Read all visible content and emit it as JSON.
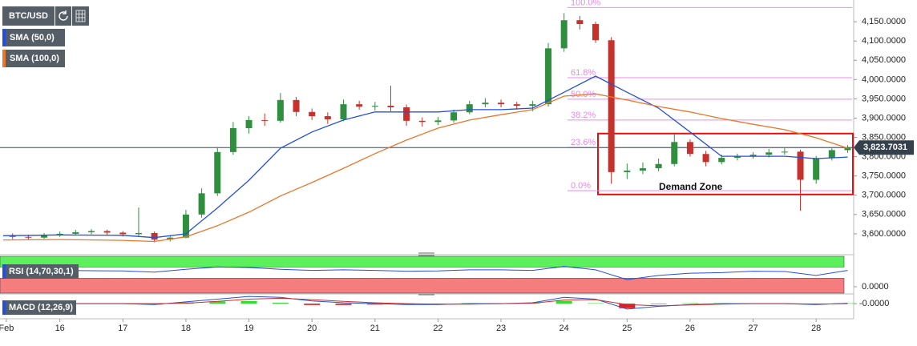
{
  "chart_data": [
    {
      "type": "candlestick",
      "symbol": "BTC/USD",
      "x": [
        15.25,
        15.5,
        15.75,
        16,
        16.25,
        16.5,
        16.75,
        17,
        17.25,
        17.5,
        17.75,
        18,
        18.25,
        18.5,
        18.75,
        19,
        19.25,
        19.5,
        19.75,
        20,
        20.25,
        20.5,
        20.75,
        21,
        21.25,
        21.5,
        21.75,
        22,
        22.25,
        22.5,
        22.75,
        23,
        23.25,
        23.5,
        23.75,
        24,
        24.25,
        24.5,
        24.75,
        25,
        25.25,
        25.5,
        25.75,
        26,
        26.25,
        26.5,
        26.75,
        27,
        27.25,
        27.5,
        27.75,
        28,
        28.25,
        28.5
      ],
      "open": [
        3595,
        3592,
        3590,
        3597,
        3600,
        3604,
        3607,
        3603,
        3599,
        3602,
        3585,
        3590,
        3650,
        3705,
        3812,
        3874,
        3895,
        3893,
        3947,
        3916,
        3905,
        3897,
        3936,
        3930,
        3932,
        3928,
        3893,
        3890,
        3894,
        3915,
        3936,
        3940,
        3936,
        3932,
        3936,
        4081,
        4154,
        4144,
        4102,
        3760,
        3764,
        3770,
        3781,
        3838,
        3807,
        3786,
        3797,
        3801,
        3805,
        3811,
        3813,
        3740,
        3796,
        3817
      ],
      "high": [
        3601,
        3598,
        3602,
        3606,
        3610,
        3612,
        3611,
        3607,
        3668,
        3606,
        3596,
        3662,
        3718,
        3825,
        3890,
        3905,
        3912,
        3965,
        3955,
        3925,
        3915,
        3948,
        3945,
        3942,
        3984,
        3935,
        3902,
        3903,
        3922,
        3945,
        3952,
        3948,
        3942,
        3945,
        4095,
        4172,
        4165,
        4150,
        4110,
        3782,
        3785,
        3795,
        3858,
        3845,
        3815,
        3805,
        3808,
        3812,
        3820,
        3822,
        3818,
        3802,
        3822,
        3830
      ],
      "low": [
        3586,
        3584,
        3587,
        3592,
        3596,
        3599,
        3597,
        3593,
        3594,
        3578,
        3580,
        3588,
        3642,
        3698,
        3805,
        3860,
        3880,
        3888,
        3905,
        3895,
        3885,
        3892,
        3922,
        3920,
        3918,
        3880,
        3878,
        3882,
        3888,
        3910,
        3928,
        3928,
        3922,
        3918,
        3930,
        4072,
        4130,
        4095,
        3730,
        3742,
        3755,
        3762,
        3775,
        3800,
        3775,
        3780,
        3790,
        3795,
        3798,
        3805,
        3660,
        3730,
        3790,
        3810
      ],
      "close": [
        3592,
        3590,
        3597,
        3600,
        3604,
        3607,
        3603,
        3599,
        3602,
        3585,
        3590,
        3650,
        3705,
        3812,
        3874,
        3895,
        3893,
        3947,
        3916,
        3905,
        3897,
        3936,
        3930,
        3932,
        3928,
        3893,
        3890,
        3894,
        3915,
        3936,
        3940,
        3936,
        3932,
        3936,
        4081,
        4154,
        4144,
        4102,
        3760,
        3764,
        3770,
        3781,
        3838,
        3807,
        3786,
        3797,
        3801,
        3805,
        3811,
        3813,
        3740,
        3796,
        3817,
        3824
      ],
      "up_color": "#2f8f3e",
      "down_color": "#c8312b",
      "series": [
        {
          "name": "SMA (50,0)",
          "color": "#2450d8",
          "x": [
            15.1,
            16,
            17,
            17.5,
            18,
            18.5,
            19,
            19.5,
            20,
            20.5,
            21,
            21.5,
            22,
            22.5,
            23,
            23.5,
            24,
            24.5,
            25,
            25.5,
            26,
            26.5,
            27,
            27.5,
            28,
            28.5
          ],
          "values": [
            3595,
            3597,
            3596,
            3590,
            3600,
            3667,
            3739,
            3822,
            3864,
            3895,
            3916,
            3916,
            3916,
            3922,
            3922,
            3926,
            3967,
            4009,
            3967,
            3926,
            3864,
            3801,
            3801,
            3801,
            3795,
            3799
          ]
        },
        {
          "name": "SMA (100,0)",
          "color": "#e8772a",
          "x": [
            15.1,
            16,
            17,
            17.5,
            18,
            18.5,
            19,
            19.5,
            20,
            20.5,
            21,
            21.5,
            22,
            22.5,
            23,
            23.5,
            24,
            24.5,
            25,
            25.5,
            26,
            26.5,
            27,
            27.5,
            28,
            28.5
          ],
          "values": [
            3584,
            3585,
            3583,
            3580,
            3592,
            3621,
            3656,
            3698,
            3733,
            3770,
            3808,
            3843,
            3874,
            3895,
            3909,
            3922,
            3957,
            3963,
            3947,
            3930,
            3916,
            3899,
            3884,
            3870,
            3849,
            3822
          ]
        }
      ],
      "fib_levels": [
        {
          "label": "100.0%",
          "value": 4187
        },
        {
          "label": "61.8%",
          "value": 4005
        },
        {
          "label": "50.0%",
          "value": 3949
        },
        {
          "label": "38.2%",
          "value": 3895
        },
        {
          "label": "23.6%",
          "value": 3824
        },
        {
          "label": "0.0%",
          "value": 3712
        }
      ],
      "zone": {
        "label": "Demand Zone",
        "range": [
          3702,
          3860
        ]
      },
      "last_price": {
        "value": 3823.7031,
        "label": "3,823.7031"
      },
      "ylim": [
        3552,
        4196
      ],
      "yticks": [
        {
          "value": 3600,
          "label": "3,600.0000"
        },
        {
          "value": 3650,
          "label": "3,650.0000"
        },
        {
          "value": 3700,
          "label": "3,700.0000"
        },
        {
          "value": 3750,
          "label": "3,750.0000"
        },
        {
          "value": 3800,
          "label": "3,800.0000"
        },
        {
          "value": 3850,
          "label": "3,850.0000"
        },
        {
          "value": 3900,
          "label": "3,900.0000"
        },
        {
          "value": 3950,
          "label": "3,950.0000"
        },
        {
          "value": 4000,
          "label": "4,000.0000"
        },
        {
          "value": 4050,
          "label": "4,050.0000"
        },
        {
          "value": 4100,
          "label": "4,100.0000"
        },
        {
          "value": 4150,
          "label": "4,150.0000"
        }
      ],
      "xlim": [
        15.05,
        28.57
      ],
      "xticks": [
        {
          "value": 15.15,
          "label": "Feb"
        },
        16,
        17,
        18,
        19,
        20,
        21,
        22,
        23,
        24,
        25,
        26,
        27,
        28
      ]
    },
    {
      "type": "rsi",
      "title": "RSI (14,70,30,1)",
      "color": "#2450d8",
      "x": [
        15.1,
        16,
        17,
        17.5,
        18,
        18.5,
        19,
        19.5,
        20,
        20.5,
        21,
        21.5,
        22,
        22.5,
        23,
        23.5,
        24,
        24.5,
        25,
        25.5,
        26,
        26.5,
        27,
        27.5,
        28,
        28.5
      ],
      "values": [
        55,
        58,
        56,
        52,
        62,
        70,
        68,
        62,
        58,
        60,
        58,
        55,
        56,
        60,
        60,
        58,
        72,
        60,
        25,
        40,
        48,
        50,
        55,
        54,
        40,
        58
      ],
      "bands": [
        {
          "range": [
            70,
            108
          ],
          "color": "#5cf05c"
        },
        {
          "range": [
            -23,
            30
          ],
          "color": "#f57d7d"
        }
      ],
      "ylim": [
        -23,
        108
      ],
      "yticks": [
        {
          "value": 0,
          "label": "0.0000"
        }
      ]
    },
    {
      "type": "macd",
      "title": "MACD (12,26,9)",
      "x": [
        15.1,
        16,
        17,
        17.5,
        18,
        18.5,
        19,
        19.5,
        20,
        20.5,
        21,
        21.5,
        22,
        22.5,
        23,
        23.5,
        24,
        24.5,
        25,
        25.5,
        26,
        26.5,
        27,
        27.5,
        28,
        28.5
      ],
      "macd": [
        0,
        0,
        0,
        -0.1,
        0.2,
        0.5,
        0.8,
        0.7,
        0.3,
        0.1,
        0,
        -0.1,
        -0.1,
        0,
        0,
        0.1,
        0.7,
        0.5,
        -0.6,
        -0.3,
        -0.1,
        0,
        0,
        0,
        -0.1,
        0.05
      ],
      "signal": [
        0,
        0,
        0,
        0,
        0.05,
        0.25,
        0.5,
        0.6,
        0.45,
        0.25,
        0.1,
        0,
        -0.05,
        -0.05,
        0,
        0.05,
        0.4,
        0.45,
        -0.1,
        -0.25,
        -0.15,
        -0.05,
        0,
        0,
        -0.05,
        0
      ],
      "histogram": [
        0,
        0,
        0,
        -0.1,
        0.15,
        0.25,
        0.3,
        0.1,
        -0.15,
        -0.15,
        -0.1,
        -0.1,
        -0.05,
        0.05,
        0,
        0.05,
        0.3,
        0.05,
        -0.5,
        -0.05,
        0.05,
        0.05,
        0,
        0,
        -0.05,
        0.05
      ],
      "macd_color": "#2450d8",
      "signal_color": "#c8312b",
      "up_color": "#33dd33",
      "down_color": "#e02020",
      "ylim": [
        -1.5,
        0.9
      ],
      "yticks": [
        {
          "value": 0,
          "label": "-0.0000"
        }
      ]
    }
  ]
}
